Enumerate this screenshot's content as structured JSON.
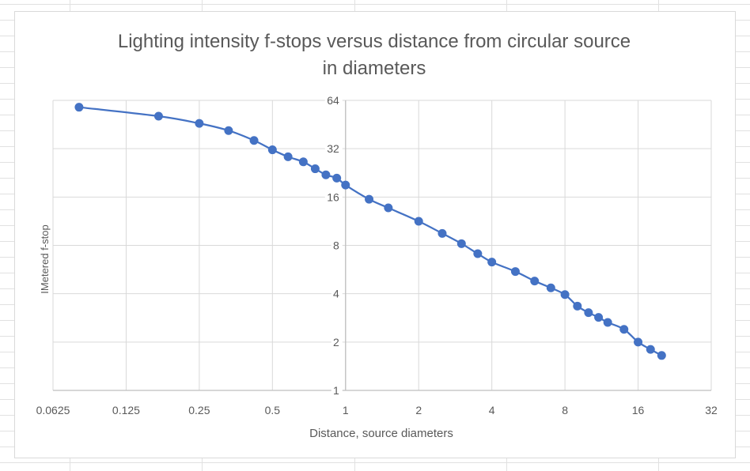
{
  "chart_data": {
    "type": "scatter",
    "title_lines": [
      "Lighting intensity f-stops versus distance from circular source",
      "in diameters"
    ],
    "xlabel": "Distance, source diameters",
    "ylabel": "IMetered f-stop",
    "x_scale": "log2",
    "y_scale": "log2",
    "xlim": [
      0.0625,
      32
    ],
    "ylim": [
      1,
      64
    ],
    "x_ticks": [
      "0.0625",
      "0.125",
      "0.25",
      "0.5",
      "1",
      "2",
      "4",
      "8",
      "16",
      "32"
    ],
    "y_ticks": [
      "1",
      "2",
      "4",
      "8",
      "16",
      "32",
      "64"
    ],
    "grid": true,
    "legend": "none",
    "series": [
      {
        "color": "#4472c4",
        "marker": "circle",
        "line": "smooth",
        "points": [
          [
            0.08,
            58
          ],
          [
            0.17,
            51
          ],
          [
            0.25,
            46
          ],
          [
            0.33,
            41.5
          ],
          [
            0.42,
            36
          ],
          [
            0.5,
            31.5
          ],
          [
            0.58,
            28.5
          ],
          [
            0.67,
            26.5
          ],
          [
            0.75,
            24
          ],
          [
            0.83,
            22
          ],
          [
            0.92,
            21
          ],
          [
            1.0,
            19
          ],
          [
            1.25,
            15.5
          ],
          [
            1.5,
            13.7
          ],
          [
            2.0,
            11.3
          ],
          [
            2.5,
            9.5
          ],
          [
            3.0,
            8.2
          ],
          [
            3.5,
            7.1
          ],
          [
            4.0,
            6.3
          ],
          [
            5.0,
            5.5
          ],
          [
            6.0,
            4.8
          ],
          [
            7.0,
            4.35
          ],
          [
            8.0,
            3.95
          ],
          [
            9.0,
            3.35
          ],
          [
            10.0,
            3.05
          ],
          [
            11.0,
            2.85
          ],
          [
            12.0,
            2.65
          ],
          [
            14.0,
            2.4
          ],
          [
            16.0,
            2.0
          ],
          [
            18.0,
            1.8
          ],
          [
            20.0,
            1.65
          ]
        ]
      }
    ]
  }
}
